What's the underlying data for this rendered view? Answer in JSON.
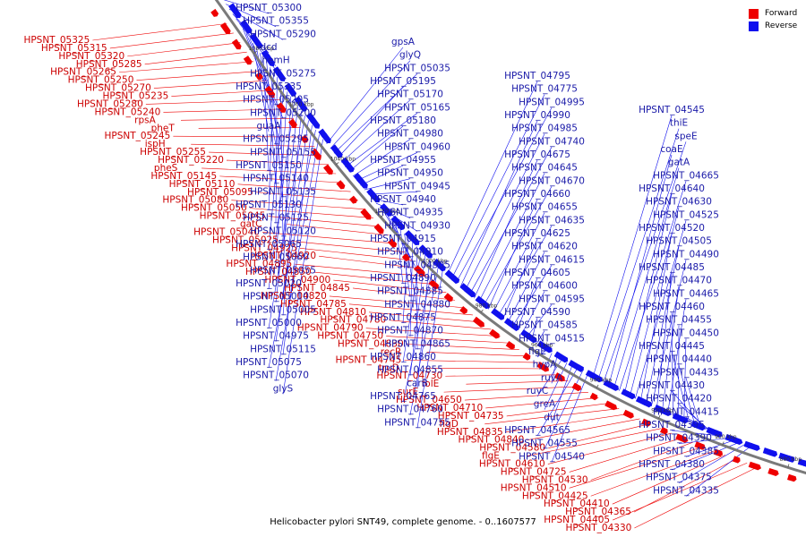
{
  "caption": "Helicobacter pylori SNT49, complete genome. - 0..1607577",
  "legend": {
    "forward_label": "Forward",
    "reverse_label": "Reverse",
    "forward_color": "#ee0000",
    "reverse_color": "#1010ee"
  },
  "ticks": [
    "1080 kbp",
    "1060 kbp",
    "1040 kbp",
    "1020 kbp",
    "1000 kbp",
    "980 kbp",
    "960 kbp",
    "940 kbp",
    "920 kbp",
    "900 kbp",
    "880 kbp"
  ],
  "forward_genes": [
    "HPSNT_05325",
    "HPSNT_05315",
    "HPSNT_05320",
    "HPSNT_05285",
    "HPSNT_05265",
    "HPSNT_05250",
    "HPSNT_05270",
    "HPSNT_05235",
    "HPSNT_05280",
    "HPSNT_05240",
    "rpsA",
    "pheT",
    "HPSNT_05245",
    "ispH",
    "HPSNT_05255",
    "HPSNT_05220",
    "pheS",
    "HPSNT_05145",
    "HPSNT_05110",
    "HPSNT_05095",
    "HPSNT_05080",
    "HPSNT_05050",
    "HPSNT_05045",
    "gatC",
    "HPSNT_05040",
    "HPSNT_05025",
    "HPSNT_04925",
    "HPSNT_04920",
    "HPSNT_04895",
    "HPSNT_04850",
    "HPSNT_04900",
    "HPSNT_04845",
    "HPSNT_04820",
    "HPSNT_04785",
    "HPSNT_04810",
    "HPSNT_04780",
    "HPSNT_04790",
    "HPSNT_04750",
    "HPSNT_04830",
    "recR",
    "HPSNT_04745",
    "truD",
    "HPSNT_04730",
    "folE",
    "surE",
    "HPSNT_04650",
    "HPSNT_04710",
    "HPSNT_04735",
    "flgD",
    "HPSNT_04835",
    "HPSNT_04840",
    "HPSNT_04580",
    "flgE",
    "HPSNT_04610",
    "HPSNT_04725",
    "HPSNT_04530",
    "HPSNT_04510",
    "HPSNT_04425",
    "HPSNT_04410",
    "HPSNT_04365",
    "HPSNT_04405",
    "HPSNT_04330"
  ],
  "reverse_genes": [
    "HPSNT_05300",
    "HPSNT_05355",
    "HPSNT_05290",
    "dcd",
    "hemH",
    "HPSNT_05275",
    "HPSNT_05335",
    "HPSNT_05205",
    "HPSNT_05200",
    "guaA",
    "HPSNT_05295",
    "HPSNT_05155",
    "HPSNT_05150",
    "HPSNT_05140",
    "HPSNT_05135",
    "HPSNT_05130",
    "HPSNT_05125",
    "HPSNT_05120",
    "HPSNT_05065",
    "HPSNT_05060",
    "HPSNT_05055",
    "HPSNT_05020",
    "HPSNT_05010",
    "HPSNT_05005",
    "HPSNT_05000",
    "HPSNT_04975",
    "HPSNT_05115",
    "HPSNT_05075",
    "HPSNT_05070",
    "glyS",
    "gpsA",
    "glyQ",
    "HPSNT_05035",
    "HPSNT_05195",
    "HPSNT_05170",
    "HPSNT_05165",
    "HPSNT_05180",
    "HPSNT_04980",
    "HPSNT_04960",
    "HPSNT_04955",
    "HPSNT_04950",
    "HPSNT_04945",
    "HPSNT_04940",
    "HPSNT_04935",
    "HPSNT_04930",
    "HPSNT_04915",
    "HPSNT_04910",
    "HPSNT_04905",
    "HPSNT_04890",
    "HPSNT_04885",
    "HPSNT_04880",
    "HPSNT_04875",
    "HPSNT_04870",
    "HPSNT_04865",
    "HPSNT_04860",
    "HPSNT_04855",
    "carB",
    "HPSNT_04765",
    "HPSNT_04760",
    "HPSNT_04755",
    "HPSNT_04795",
    "HPSNT_04775",
    "HPSNT_04995",
    "HPSNT_04990",
    "HPSNT_04985",
    "HPSNT_04740",
    "HPSNT_04675",
    "HPSNT_04645",
    "HPSNT_04670",
    "HPSNT_04660",
    "HPSNT_04655",
    "HPSNT_04635",
    "HPSNT_04625",
    "HPSNT_04620",
    "HPSNT_04615",
    "HPSNT_04605",
    "HPSNT_04600",
    "HPSNT_04595",
    "HPSNT_04590",
    "HPSNT_04585",
    "HPSNT_04515",
    "flgE",
    "hypA",
    "ruvA",
    "ruvC",
    "greA",
    "dut",
    "HPSNT_04565",
    "HPSNT_04555",
    "HPSNT_04540",
    "HPSNT_04545",
    "thiE",
    "speE",
    "coaE",
    "gatA",
    "HPSNT_04665",
    "HPSNT_04640",
    "HPSNT_04630",
    "HPSNT_04525",
    "HPSNT_04520",
    "HPSNT_04505",
    "HPSNT_04490",
    "HPSNT_04485",
    "HPSNT_04470",
    "HPSNT_04465",
    "HPSNT_04460",
    "HPSNT_04455",
    "HPSNT_04450",
    "HPSNT_04445",
    "HPSNT_04440",
    "HPSNT_04435",
    "HPSNT_04430",
    "HPSNT_04420",
    "HPSNT_04415",
    "HPSNT_04395",
    "HPSNT_04390",
    "HPSNT_04385",
    "HPSNT_04380",
    "HPSNT_04375",
    "HPSNT_04335"
  ]
}
